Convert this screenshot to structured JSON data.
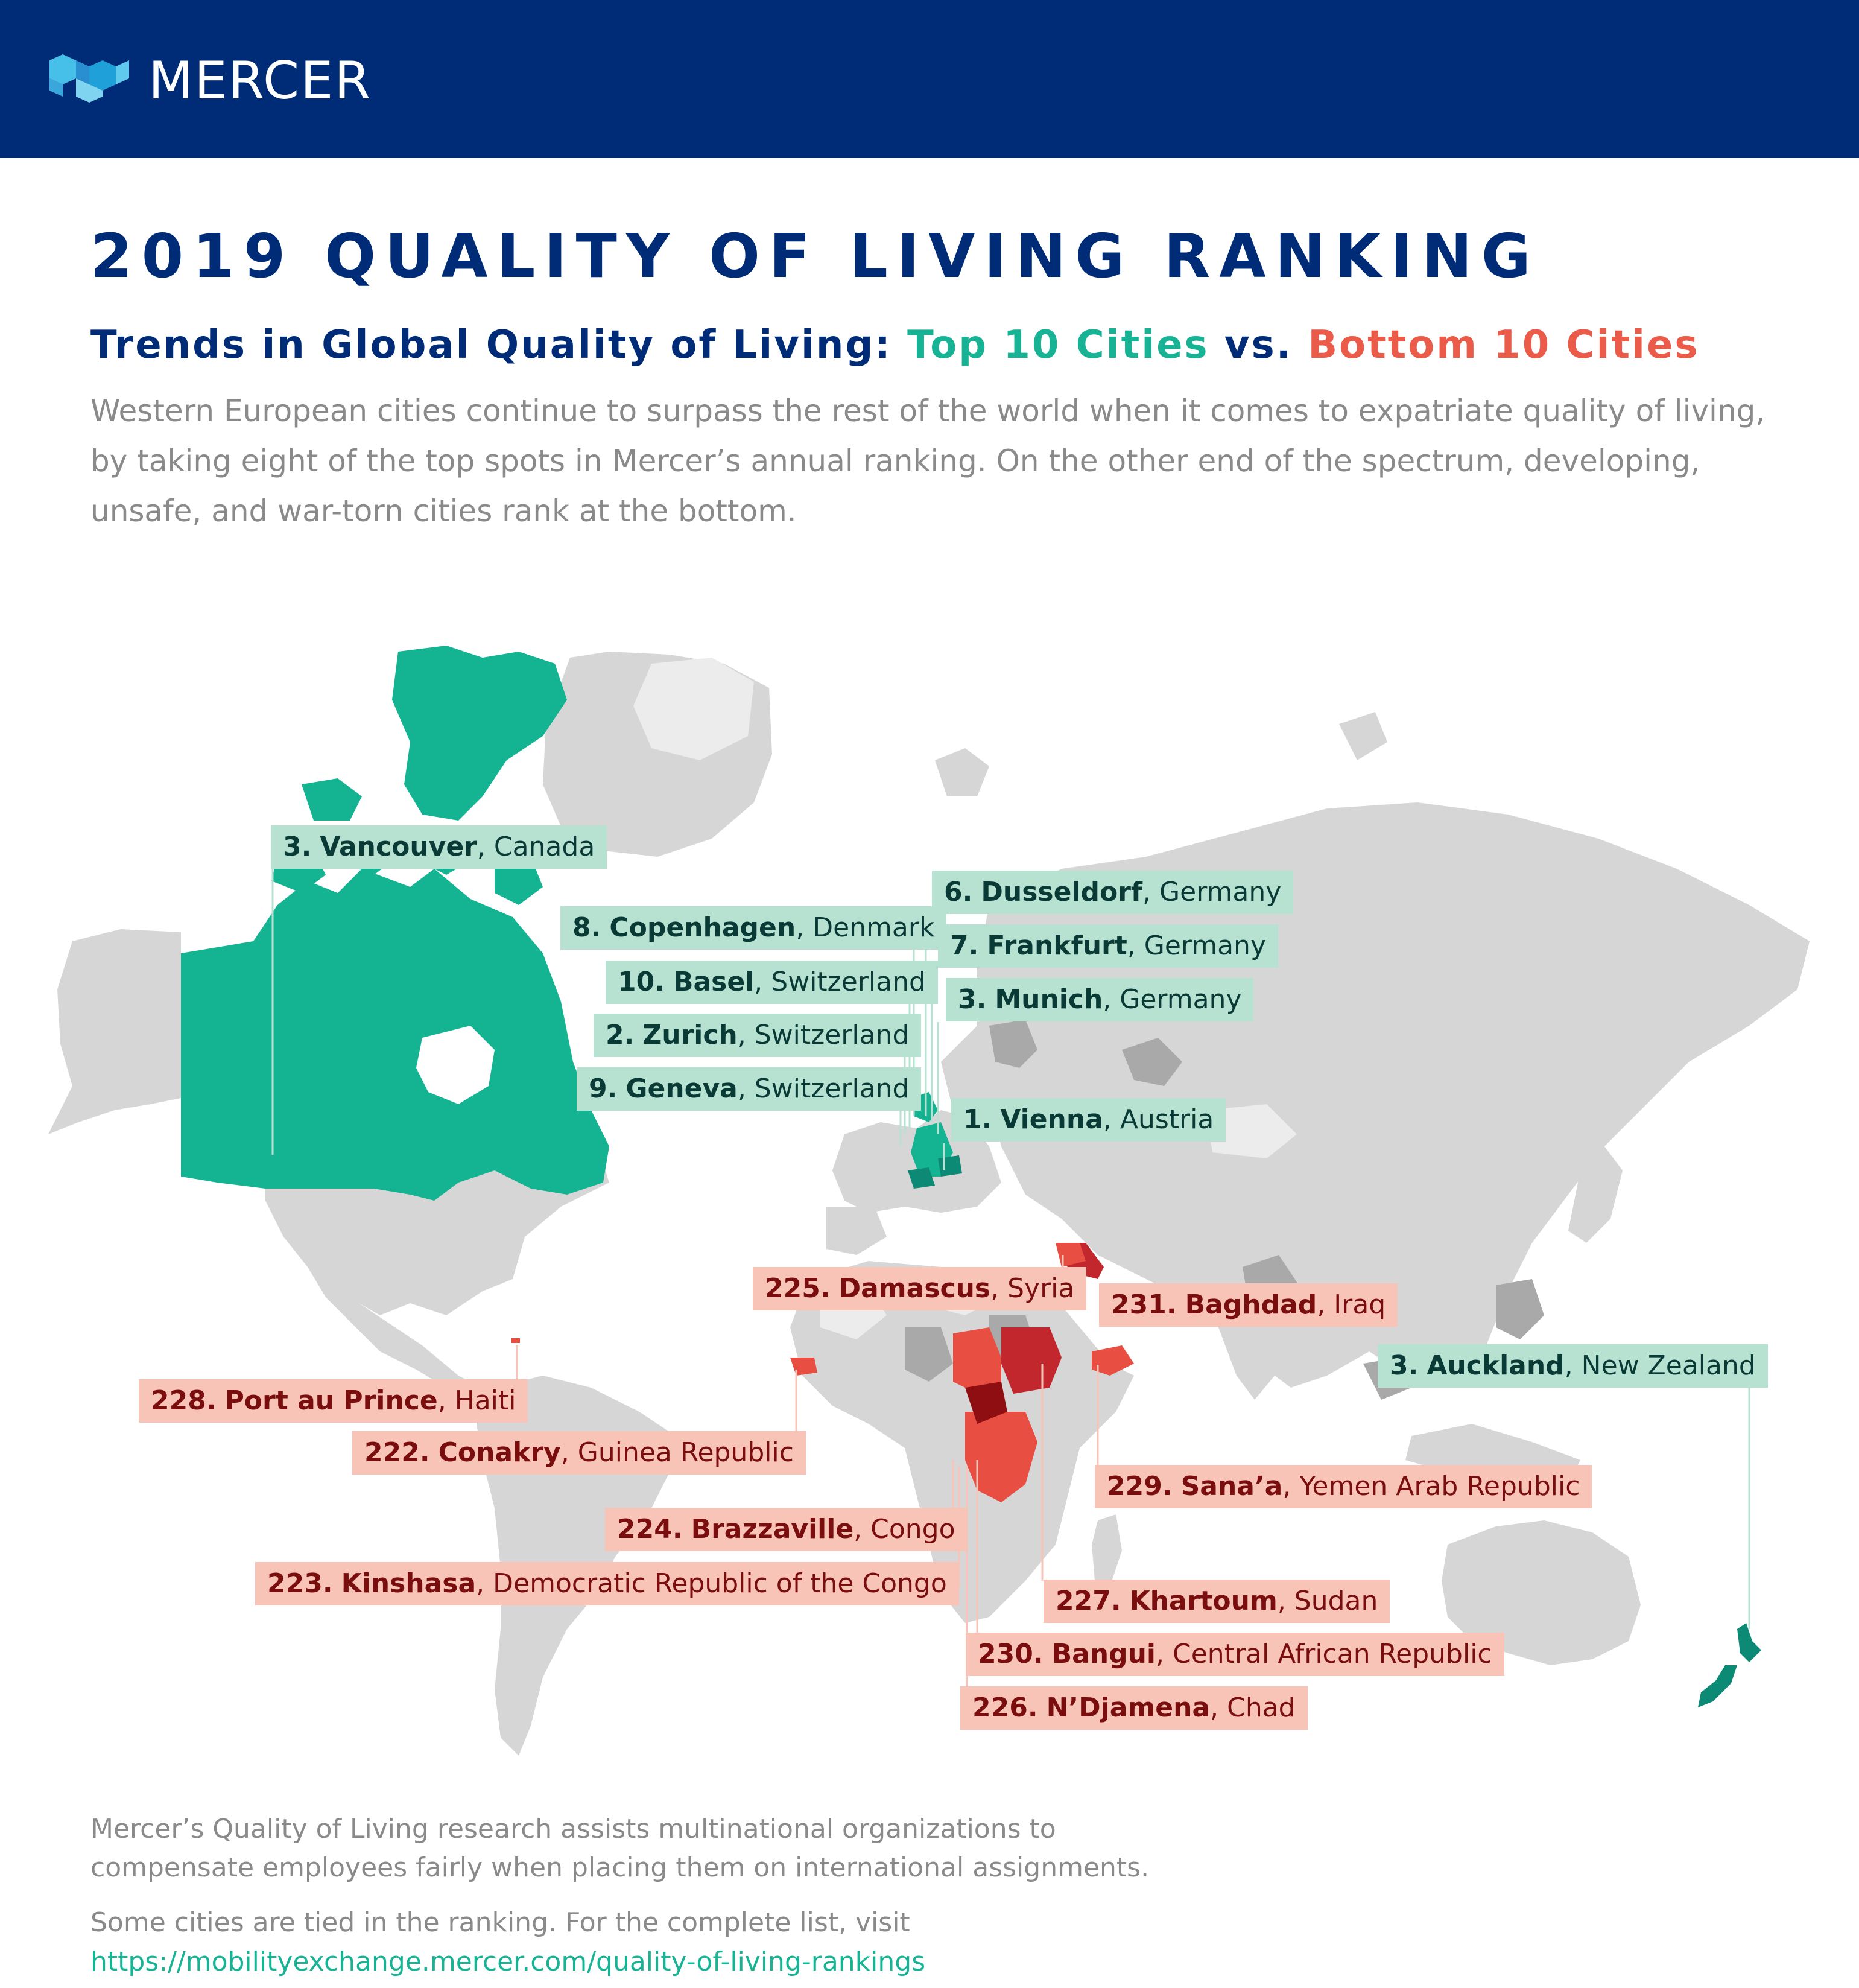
{
  "header": {
    "logo_text": "MERCER"
  },
  "title": "2019 QUALITY OF LIVING RANKING",
  "subtitle": {
    "prefix": "Trends in Global Quality of Living: ",
    "top": "Top 10 Cities",
    "vs": " vs. ",
    "bottom": "Bottom 10 Cities"
  },
  "intro": "Western European cities continue to surpass the rest of the world when it comes to expatriate quality of living, by taking eight of the top spots in Mercer’s annual ranking. On the other end of the spectrum, developing, unsafe, and war-torn cities rank at the bottom.",
  "colors": {
    "brand_navy": "#002c77",
    "top_green": "#18b394",
    "bottom_red": "#ea5b4a",
    "land_gray": "#d4d4d4"
  },
  "top_cities": [
    {
      "rank": "3.",
      "city": "Vancouver",
      "country": "Canada"
    },
    {
      "rank": "8.",
      "city": "Copenhagen",
      "country": "Denmark"
    },
    {
      "rank": "10.",
      "city": "Basel",
      "country": "Switzerland"
    },
    {
      "rank": "2.",
      "city": "Zurich",
      "country": "Switzerland"
    },
    {
      "rank": "9.",
      "city": "Geneva",
      "country": "Switzerland"
    },
    {
      "rank": "6.",
      "city": "Dusseldorf",
      "country": "Germany"
    },
    {
      "rank": "7.",
      "city": "Frankfurt",
      "country": "Germany"
    },
    {
      "rank": "3.",
      "city": "Munich",
      "country": "Germany"
    },
    {
      "rank": "1.",
      "city": "Vienna",
      "country": "Austria"
    },
    {
      "rank": "3.",
      "city": "Auckland",
      "country": "New Zealand"
    }
  ],
  "bottom_cities": [
    {
      "rank": "225.",
      "city": "Damascus",
      "country": "Syria"
    },
    {
      "rank": "231.",
      "city": "Baghdad",
      "country": "Iraq"
    },
    {
      "rank": "228.",
      "city": "Port au Prince",
      "country": "Haiti"
    },
    {
      "rank": "222.",
      "city": "Conakry",
      "country": "Guinea Republic"
    },
    {
      "rank": "229.",
      "city": "Sana’a",
      "country": "Yemen Arab Republic"
    },
    {
      "rank": "224.",
      "city": "Brazzaville",
      "country": "Congo"
    },
    {
      "rank": "223.",
      "city": "Kinshasa",
      "country": "Democratic Republic of the Congo"
    },
    {
      "rank": "227.",
      "city": "Khartoum",
      "country": "Sudan"
    },
    {
      "rank": "230.",
      "city": "Bangui",
      "country": "Central African Republic"
    },
    {
      "rank": "226.",
      "city": "N’Djamena",
      "country": "Chad"
    }
  ],
  "footer": {
    "line1": "Mercer’s Quality of Living research assists multinational organizations to compensate employees fairly when placing them on international assignments.",
    "line2": "Some cities are tied in the ranking. For the complete list, visit",
    "link": "https://mobilityexchange.mercer.com/quality-of-living-rankings"
  }
}
